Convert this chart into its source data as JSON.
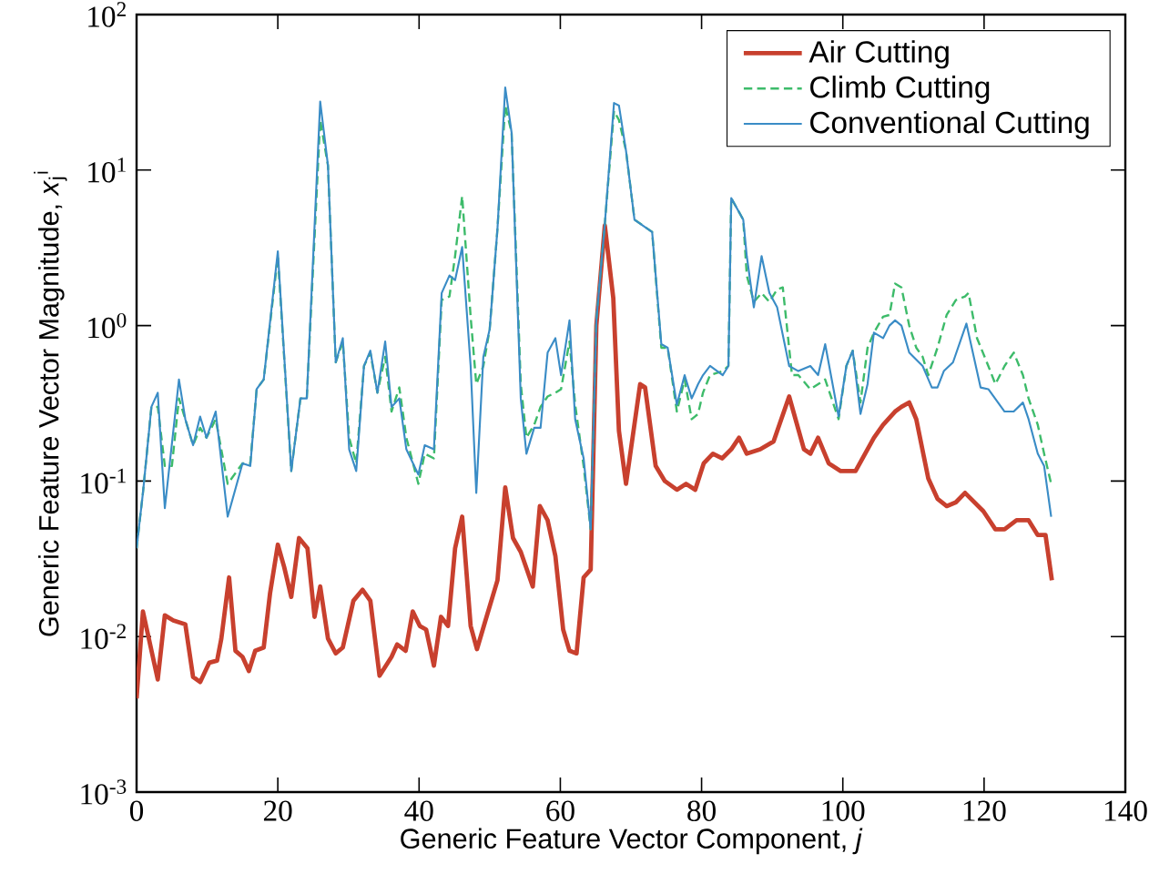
{
  "chart_data": {
    "type": "line",
    "xlabel": "Generic Feature Vector Component, *j*",
    "ylabel": "Generic Feature Vector Magnitude, *x*$_{j}$$^{i}$",
    "xlim": [
      0,
      140
    ],
    "xticks": [
      0,
      20,
      40,
      60,
      80,
      100,
      120,
      140
    ],
    "ylim": [
      0.001,
      100
    ],
    "yticks": [
      {
        "value": 0.001,
        "label": "10$^{-3}$"
      },
      {
        "value": 0.01,
        "label": "10$^{-2}$"
      },
      {
        "value": 0.1,
        "label": "10$^{-1}$"
      },
      {
        "value": 1,
        "label": "10$^{0}$"
      },
      {
        "value": 10,
        "label": "10$^{1}$"
      },
      {
        "value": 100,
        "label": "10$^{2}$"
      }
    ],
    "log": "y",
    "grid": false,
    "legend": "top right",
    "series": [
      {
        "name": "Air Cutting",
        "color": "#c8402e",
        "line_style": "solid",
        "x": [
          0,
          0.9,
          3.0,
          4.0,
          5.2,
          6.9,
          8.0,
          9.0,
          10.3,
          11.4,
          12.0,
          13.1,
          14.0,
          15.0,
          15.9,
          16.8,
          18.0,
          18.9,
          20.0,
          20.9,
          21.9,
          23.0,
          24.2,
          25.2,
          26.0,
          27.1,
          28.2,
          29.2,
          30.7,
          32.0,
          33.1,
          34.4,
          36.1,
          36.9,
          38.1,
          39.1,
          40.1,
          41.0,
          42.1,
          43.1,
          44.1,
          45.1,
          46.1,
          47.3,
          48.2,
          49.4,
          51.1,
          52.2,
          53.3,
          54.4,
          56.1,
          57.1,
          58.2,
          59.3,
          60.4,
          61.3,
          62.3,
          63.3,
          64.3,
          65.1,
          66.3,
          67.5,
          68.3,
          69.3,
          71.3,
          72.0,
          73.5,
          74.8,
          76.5,
          77.8,
          79.1,
          80.3,
          81.6,
          82.9,
          84.2,
          85.3,
          86.4,
          88.3,
          90.2,
          92.4,
          94.5,
          95.4,
          96.5,
          98.0,
          99.7,
          101.8,
          104.4,
          105.7,
          107.4,
          108.3,
          109.4,
          110.4,
          112.1,
          113.4,
          114.7,
          116.0,
          117.3,
          119.9,
          121.6,
          122.9,
          124.6,
          126.3,
          127.6,
          128.7,
          129.6
        ],
        "values": [
          0.004,
          0.0145,
          0.0053,
          0.0137,
          0.0127,
          0.012,
          0.0055,
          0.0051,
          0.0068,
          0.007,
          0.0097,
          0.024,
          0.0081,
          0.0074,
          0.006,
          0.0081,
          0.0085,
          0.019,
          0.039,
          0.028,
          0.018,
          0.043,
          0.037,
          0.0134,
          0.021,
          0.0097,
          0.0078,
          0.0085,
          0.017,
          0.02,
          0.017,
          0.0056,
          0.0074,
          0.0089,
          0.0081,
          0.0145,
          0.0117,
          0.0111,
          0.0065,
          0.0134,
          0.0117,
          0.037,
          0.059,
          0.0117,
          0.0083,
          0.0127,
          0.023,
          0.091,
          0.043,
          0.035,
          0.021,
          0.069,
          0.056,
          0.033,
          0.0111,
          0.0081,
          0.0078,
          0.024,
          0.027,
          1.0,
          4.4,
          1.5,
          0.21,
          0.096,
          0.42,
          0.4,
          0.125,
          0.1,
          0.088,
          0.096,
          0.088,
          0.13,
          0.15,
          0.14,
          0.16,
          0.19,
          0.15,
          0.16,
          0.18,
          0.35,
          0.16,
          0.15,
          0.19,
          0.13,
          0.116,
          0.116,
          0.19,
          0.23,
          0.28,
          0.3,
          0.32,
          0.25,
          0.104,
          0.077,
          0.069,
          0.073,
          0.084,
          0.064,
          0.049,
          0.049,
          0.056,
          0.056,
          0.045,
          0.045,
          0.023
        ]
      },
      {
        "name": "Climb Cutting",
        "color": "#3dbb6a",
        "line_style": "dashed",
        "x": [
          0,
          0.9,
          2.1,
          3.0,
          4.0,
          5.0,
          6.0,
          6.9,
          8.0,
          9.0,
          9.9,
          11.2,
          12.9,
          15.0,
          16.1,
          17.0,
          18.0,
          20.0,
          21.9,
          23.2,
          24.1,
          26.0,
          27.1,
          28.2,
          29.2,
          30.1,
          31.1,
          32.2,
          33.1,
          34.1,
          35.2,
          36.1,
          37.2,
          38.2,
          39.9,
          40.8,
          42.1,
          43.2,
          44.3,
          45.1,
          46.1,
          47.3,
          48.1,
          49.1,
          50.0,
          51.1,
          52.2,
          53.1,
          54.4,
          55.2,
          56.3,
          57.2,
          58.2,
          59.3,
          60.1,
          61.3,
          62.1,
          63.3,
          64.3,
          65.1,
          66.3,
          67.6,
          68.3,
          69.3,
          70.5,
          73.0,
          74.3,
          75.2,
          76.5,
          77.6,
          78.6,
          79.5,
          80.2,
          81.2,
          83.0,
          83.8,
          84.2,
          85.9,
          86.4,
          87.4,
          88.5,
          89.6,
          90.7,
          91.5,
          92.8,
          93.7,
          95.4,
          96.5,
          97.5,
          99.4,
          100.5,
          101.4,
          102.5,
          103.5,
          104.4,
          105.7,
          106.6,
          107.4,
          108.3,
          109.4,
          110.4,
          111.3,
          112.1,
          113.4,
          114.7,
          116.0,
          117.3,
          117.8,
          119.0,
          120.6,
          121.6,
          122.9,
          124.2,
          125.5,
          126.3,
          127.6,
          128.5,
          129.5
        ],
        "values": [
          0.037,
          0.084,
          0.3,
          0.3,
          0.125,
          0.125,
          0.34,
          0.25,
          0.17,
          0.22,
          0.19,
          0.25,
          0.096,
          0.13,
          0.13,
          0.39,
          0.45,
          2.8,
          0.116,
          0.34,
          0.34,
          21,
          10.7,
          0.58,
          0.79,
          0.19,
          0.13,
          0.55,
          0.67,
          0.37,
          0.63,
          0.28,
          0.4,
          0.19,
          0.096,
          0.15,
          0.14,
          1.46,
          1.54,
          2.8,
          6.8,
          1.14,
          0.42,
          0.55,
          0.95,
          4.2,
          26,
          17.4,
          0.42,
          0.19,
          0.23,
          0.3,
          0.35,
          0.37,
          0.39,
          0.79,
          0.31,
          0.125,
          0.049,
          1.08,
          4.5,
          24,
          21,
          13.3,
          4.8,
          4.0,
          0.72,
          0.72,
          0.28,
          0.45,
          0.25,
          0.27,
          0.37,
          0.48,
          0.51,
          0.55,
          6.6,
          4.8,
          2.1,
          1.42,
          1.62,
          1.42,
          1.71,
          1.76,
          0.48,
          0.48,
          0.39,
          0.42,
          0.45,
          0.25,
          0.55,
          0.69,
          0.32,
          0.72,
          0.9,
          1.14,
          1.17,
          1.86,
          1.76,
          1.0,
          0.72,
          0.63,
          0.48,
          0.72,
          1.17,
          1.46,
          1.54,
          1.62,
          0.83,
          0.55,
          0.42,
          0.55,
          0.67,
          0.48,
          0.34,
          0.23,
          0.15,
          0.096
        ]
      },
      {
        "name": "Conventional Cutting",
        "color": "#3a8cc6",
        "line_style": "solid",
        "x": [
          0,
          0.9,
          2.1,
          3.0,
          4.0,
          6.0,
          6.9,
          8.0,
          9.0,
          9.9,
          11.2,
          12.9,
          15.0,
          16.1,
          17.0,
          18.0,
          20.0,
          21.9,
          23.2,
          24.1,
          26.0,
          27.1,
          28.2,
          29.2,
          30.1,
          31.1,
          32.2,
          33.1,
          34.1,
          35.2,
          36.1,
          37.2,
          38.2,
          39.9,
          40.8,
          42.1,
          43.2,
          44.3,
          45.1,
          46.1,
          47.3,
          48.1,
          49.1,
          50.0,
          51.1,
          52.2,
          53.1,
          54.4,
          55.2,
          56.3,
          57.2,
          58.2,
          59.3,
          60.1,
          61.3,
          62.1,
          63.3,
          64.3,
          65.1,
          66.3,
          67.6,
          68.3,
          69.3,
          70.5,
          73.0,
          74.3,
          75.2,
          76.5,
          77.6,
          78.6,
          79.5,
          80.2,
          81.2,
          83.0,
          83.8,
          84.2,
          85.9,
          86.4,
          87.4,
          88.5,
          89.6,
          90.7,
          92.4,
          93.7,
          95.4,
          96.5,
          97.5,
          99.4,
          100.5,
          101.4,
          102.5,
          103.5,
          104.4,
          105.7,
          106.6,
          107.4,
          108.3,
          109.4,
          111.3,
          112.6,
          113.4,
          114.3,
          115.6,
          117.5,
          119.5,
          120.6,
          122.9,
          124.2,
          125.5,
          126.3,
          127.6,
          128.5,
          129.5
        ],
        "values": [
          0.037,
          0.084,
          0.3,
          0.37,
          0.067,
          0.45,
          0.25,
          0.17,
          0.26,
          0.19,
          0.28,
          0.059,
          0.13,
          0.125,
          0.39,
          0.45,
          3.0,
          0.116,
          0.34,
          0.34,
          27.6,
          10.7,
          0.58,
          0.83,
          0.16,
          0.116,
          0.55,
          0.69,
          0.37,
          0.79,
          0.3,
          0.34,
          0.16,
          0.11,
          0.17,
          0.16,
          1.62,
          2.1,
          1.96,
          3.2,
          0.55,
          0.084,
          0.63,
          0.95,
          4.2,
          34,
          17.4,
          0.34,
          0.15,
          0.22,
          0.22,
          0.67,
          0.83,
          0.48,
          1.08,
          0.25,
          0.14,
          0.049,
          1.08,
          4.5,
          27,
          26,
          13.3,
          4.8,
          4.0,
          0.76,
          0.72,
          0.31,
          0.48,
          0.34,
          0.42,
          0.48,
          0.55,
          0.48,
          0.55,
          6.6,
          4.8,
          2.8,
          1.31,
          2.8,
          1.62,
          1.31,
          0.55,
          0.51,
          0.55,
          0.48,
          0.76,
          0.26,
          0.55,
          0.69,
          0.27,
          0.42,
          0.9,
          0.83,
          1.0,
          1.08,
          1.0,
          0.67,
          0.55,
          0.4,
          0.4,
          0.51,
          0.58,
          1.03,
          0.4,
          0.39,
          0.28,
          0.28,
          0.32,
          0.25,
          0.15,
          0.125,
          0.059
        ]
      }
    ]
  }
}
